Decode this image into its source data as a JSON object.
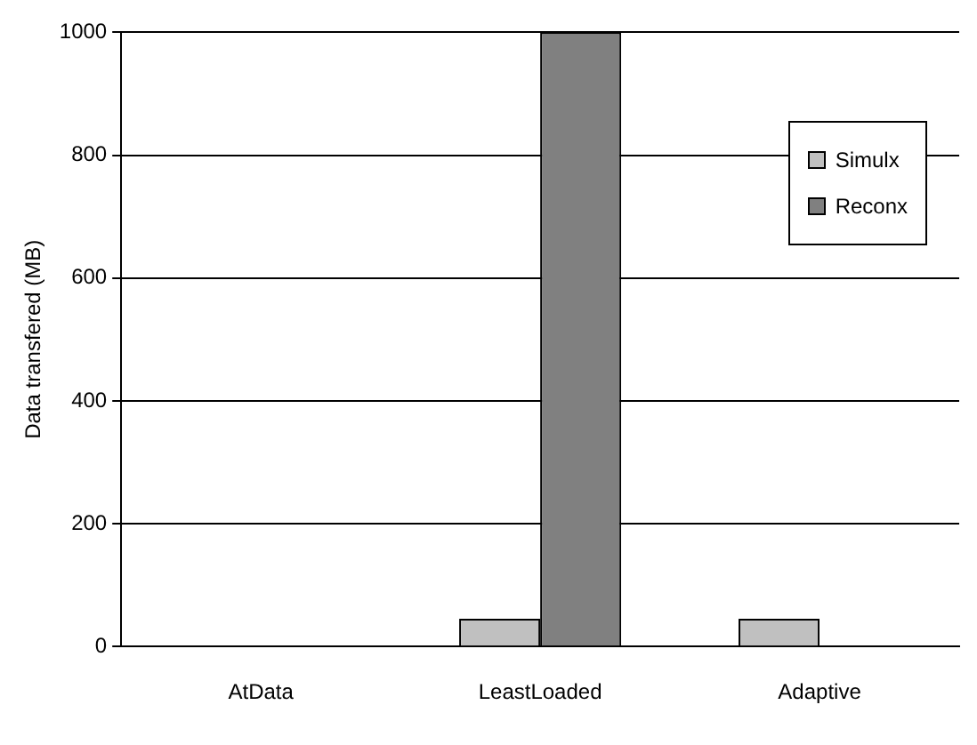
{
  "chart_data": {
    "type": "bar",
    "ylabel": "Data transfered (MB)",
    "categories": [
      "AtData",
      "LeastLoaded",
      "Adaptive"
    ],
    "series": [
      {
        "name": "Simulx",
        "color": "#c0c0c0",
        "values": [
          0,
          45,
          45
        ]
      },
      {
        "name": "Reconx",
        "color": "#808080",
        "values": [
          0,
          1000,
          0
        ]
      }
    ],
    "ylim": [
      0,
      1000
    ],
    "yticks": [
      0,
      200,
      400,
      600,
      800,
      1000
    ],
    "grid": "y",
    "legend": "top right"
  }
}
